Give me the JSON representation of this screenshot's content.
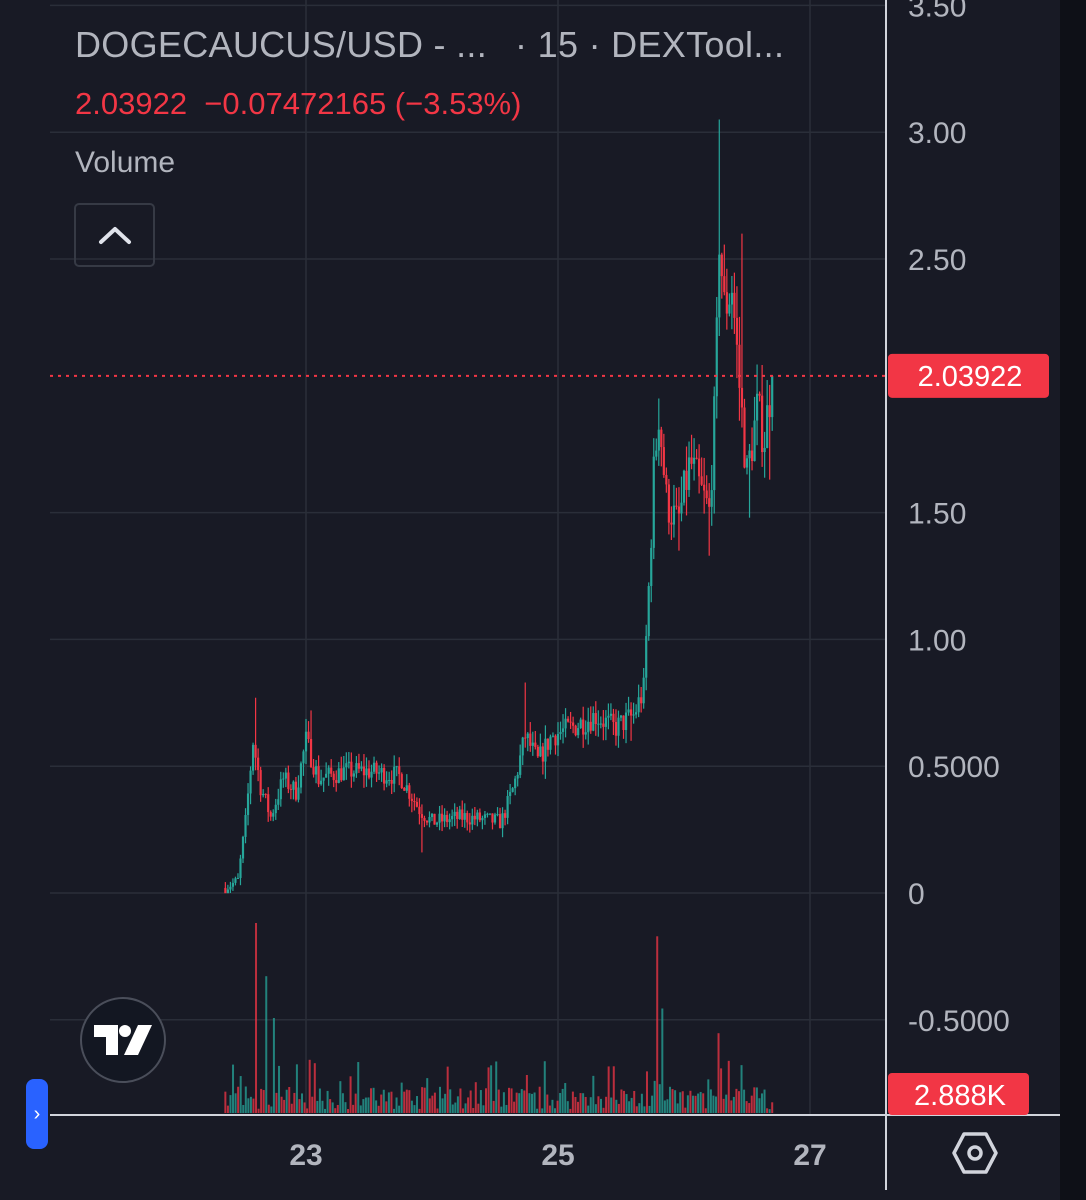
{
  "header": {
    "symbol": "DOGECAUCUS/USD - ...",
    "interval": "· 15 · DEXTool...",
    "price_last": "2.03922",
    "price_change": "−0.07472165 (−3.53%)",
    "volume_label": "Volume"
  },
  "price_axis": {
    "labels": [
      "3.50",
      "3.00",
      "2.50",
      "1.50",
      "1.00",
      "0.5000",
      "0",
      "-0.5000"
    ],
    "values": [
      3.5,
      3.0,
      2.5,
      1.5,
      1.0,
      0.5,
      0,
      -0.5
    ],
    "last_price_tag": "2.03922",
    "volume_tag": "2.888K"
  },
  "time_axis": {
    "labels": [
      "23",
      "25",
      "27"
    ],
    "values": [
      23,
      25,
      27
    ]
  },
  "colors": {
    "up": "#26a69a",
    "down": "#f23645",
    "background": "#181a25",
    "grid": "#2a2e39",
    "text": "#b2b5be",
    "accent": "#2962ff"
  },
  "icons": {
    "collapse": "chevron-up-icon",
    "logo": "tradingview-logo",
    "settings": "hexagon-settings-icon",
    "side_tab": "chevron-right-icon"
  },
  "chart_data": {
    "type": "candlestick",
    "x_unit": "day",
    "interval": "15",
    "ylim": [
      -0.55,
      3.55
    ],
    "xlim": [
      21.0,
      27.95
    ],
    "grid": true,
    "last_price": 2.03922,
    "price_keypoints": [
      [
        22.36,
        0.02
      ],
      [
        22.46,
        0.05
      ],
      [
        22.52,
        0.28
      ],
      [
        22.58,
        0.6
      ],
      [
        22.64,
        0.42
      ],
      [
        22.72,
        0.3
      ],
      [
        22.82,
        0.45
      ],
      [
        22.92,
        0.4
      ],
      [
        23.0,
        0.6
      ],
      [
        23.1,
        0.45
      ],
      [
        23.3,
        0.48
      ],
      [
        23.5,
        0.48
      ],
      [
        23.75,
        0.46
      ],
      [
        23.9,
        0.33
      ],
      [
        24.0,
        0.28
      ],
      [
        24.25,
        0.3
      ],
      [
        24.55,
        0.28
      ],
      [
        24.65,
        0.42
      ],
      [
        24.74,
        0.62
      ],
      [
        24.84,
        0.52
      ],
      [
        24.95,
        0.62
      ],
      [
        25.1,
        0.65
      ],
      [
        25.3,
        0.7
      ],
      [
        25.45,
        0.65
      ],
      [
        25.6,
        0.7
      ],
      [
        25.68,
        0.8
      ],
      [
        25.72,
        1.2
      ],
      [
        25.76,
        1.65
      ],
      [
        25.8,
        1.9
      ],
      [
        25.86,
        1.55
      ],
      [
        25.95,
        1.45
      ],
      [
        26.05,
        1.7
      ],
      [
        26.12,
        1.6
      ],
      [
        26.2,
        1.5
      ],
      [
        26.25,
        1.95
      ],
      [
        26.28,
        2.6
      ],
      [
        26.32,
        2.3
      ],
      [
        26.38,
        2.4
      ],
      [
        26.44,
        2.0
      ],
      [
        26.5,
        1.65
      ],
      [
        26.58,
        1.9
      ],
      [
        26.64,
        1.8
      ],
      [
        26.7,
        2.04
      ]
    ],
    "spikes": [
      [
        22.6,
        0.77
      ],
      [
        23.03,
        0.72
      ],
      [
        24.74,
        0.83
      ],
      [
        25.79,
        1.95
      ],
      [
        26.28,
        3.05
      ],
      [
        26.45,
        2.6
      ],
      [
        26.74,
        2.3
      ]
    ],
    "dips": [
      [
        23.91,
        0.16
      ],
      [
        24.55,
        0.22
      ],
      [
        24.9,
        0.45
      ],
      [
        25.58,
        0.6
      ],
      [
        25.95,
        1.35
      ],
      [
        26.2,
        1.33
      ],
      [
        26.52,
        1.48
      ],
      [
        26.68,
        1.63
      ]
    ],
    "volume": {
      "last": "2.888K",
      "bar_count": 215,
      "peaks": [
        {
          "x": 22.6,
          "v": 1.0
        },
        {
          "x": 22.68,
          "v": 0.72
        },
        {
          "x": 22.75,
          "v": 0.5
        },
        {
          "x": 23.02,
          "v": 0.28
        },
        {
          "x": 24.75,
          "v": 0.2
        },
        {
          "x": 25.78,
          "v": 0.93
        },
        {
          "x": 25.82,
          "v": 0.55
        },
        {
          "x": 26.28,
          "v": 0.42
        },
        {
          "x": 26.73,
          "v": 0.2
        }
      ]
    }
  }
}
